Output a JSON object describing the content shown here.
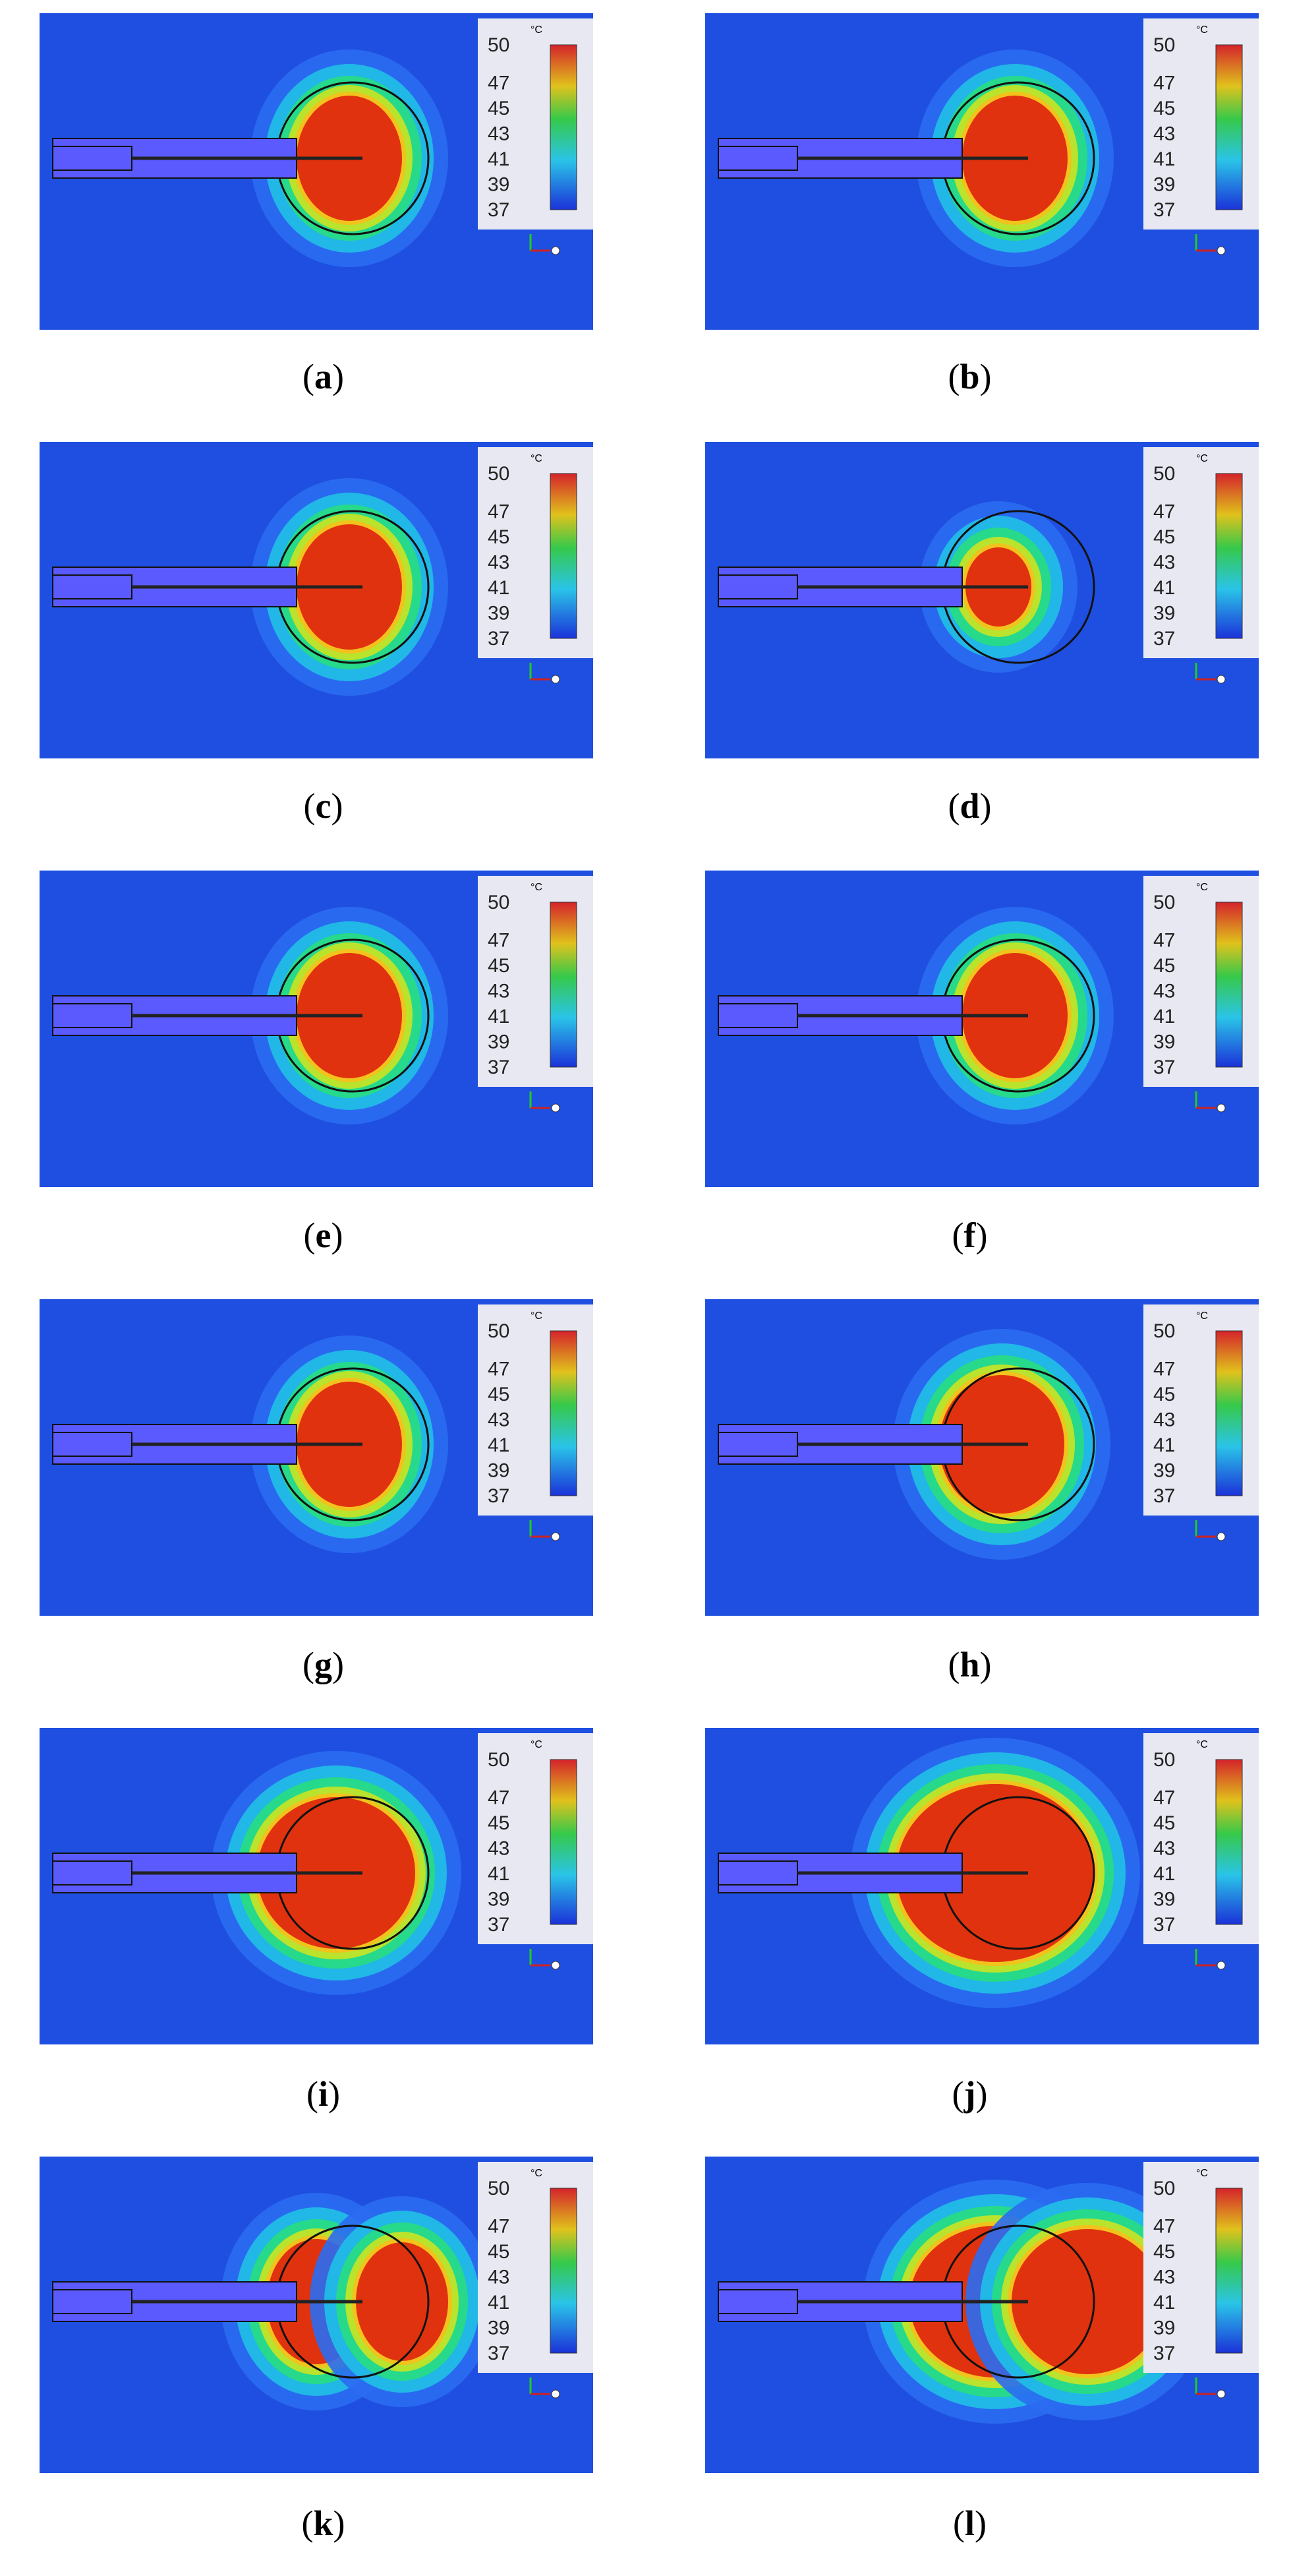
{
  "colorbar": {
    "unit": "°C",
    "ticks": [
      "50",
      "47",
      "45",
      "43",
      "41",
      "39",
      "37"
    ],
    "max": 50,
    "min": 37
  },
  "colors": {
    "background_field": "#1f4fe0",
    "hot_zone": "#e0320f",
    "probe": "#5a5aff"
  },
  "panels": [
    {
      "label": "a",
      "pattern": "tip"
    },
    {
      "label": "b",
      "pattern": "tip"
    },
    {
      "label": "c",
      "pattern": "tip"
    },
    {
      "label": "d",
      "pattern": "tip-small"
    },
    {
      "label": "e",
      "pattern": "tip"
    },
    {
      "label": "f",
      "pattern": "tip"
    },
    {
      "label": "g",
      "pattern": "tip"
    },
    {
      "label": "h",
      "pattern": "tip-wide"
    },
    {
      "label": "i",
      "pattern": "tip-wider"
    },
    {
      "label": "j",
      "pattern": "tip-widest"
    },
    {
      "label": "k",
      "pattern": "double"
    },
    {
      "label": "l",
      "pattern": "double-large"
    }
  ]
}
